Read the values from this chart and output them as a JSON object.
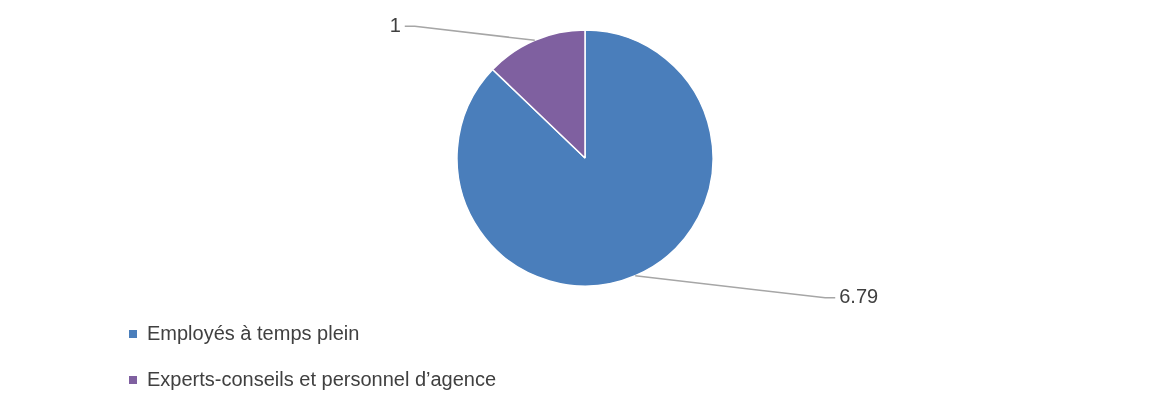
{
  "chart_data": {
    "type": "pie",
    "categories": [
      "Employés à temps plein",
      "Experts-conseils et personnel d’agence"
    ],
    "values": [
      6.79,
      1
    ],
    "colors": [
      "#4a7ebb",
      "#7f60a0"
    ],
    "data_labels": true,
    "legend": "bottom left"
  }
}
